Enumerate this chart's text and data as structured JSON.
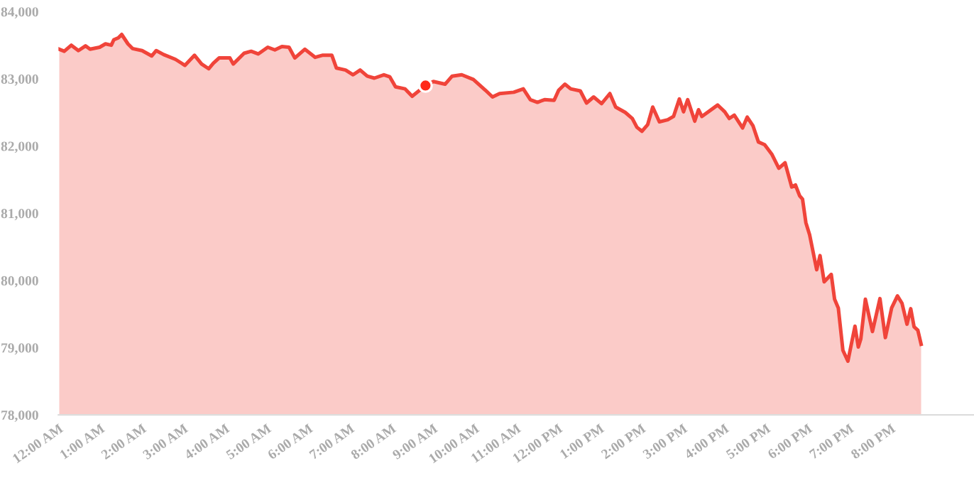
{
  "chart_data": {
    "type": "area",
    "series": [
      {
        "color": "#f0443a",
        "x": [
          0.02,
          0.14,
          0.31,
          0.48,
          0.65,
          0.76,
          0.99,
          1.13,
          1.27,
          1.33,
          1.44,
          1.52,
          1.67,
          1.78,
          2.01,
          2.24,
          2.35,
          2.53,
          2.81,
          3.04,
          3.27,
          3.44,
          3.61,
          3.72,
          3.86,
          4.12,
          4.2,
          4.46,
          4.63,
          4.8,
          5.03,
          5.2,
          5.37,
          5.54,
          5.68,
          5.92,
          6.17,
          6.34,
          6.57,
          6.68,
          6.9,
          7.08,
          7.25,
          7.42,
          7.59,
          7.82,
          7.96,
          8.1,
          8.33,
          8.5,
          8.82,
          9.01,
          9.29,
          9.46,
          9.69,
          9.97,
          10.26,
          10.43,
          10.6,
          10.94,
          11.17,
          11.34,
          11.51,
          11.68,
          11.91,
          12.02,
          12.17,
          12.31,
          12.54,
          12.69,
          12.86,
          13.05,
          13.25,
          13.39,
          13.62,
          13.79,
          13.9,
          14.02,
          14.16,
          14.28,
          14.44,
          14.64,
          14.78,
          14.92,
          15.02,
          15.12,
          15.29,
          15.38,
          15.46,
          15.84,
          16.01,
          16.12,
          16.24,
          16.44,
          16.55,
          16.69,
          16.82,
          16.97,
          17.14,
          17.31,
          17.46,
          17.62,
          17.71,
          17.81,
          17.88,
          17.96,
          18.05,
          18.22,
          18.3,
          18.4,
          18.57,
          18.65,
          18.74,
          18.85,
          18.97,
          19.14,
          19.22,
          19.28,
          19.39,
          19.56,
          19.74,
          19.87,
          20.02,
          20.16,
          20.27,
          20.39,
          20.48,
          20.56,
          20.65,
          20.73
        ],
        "values": [
          83440,
          83410,
          83500,
          83420,
          83490,
          83440,
          83470,
          83520,
          83500,
          83580,
          83610,
          83660,
          83520,
          83450,
          83420,
          83340,
          83420,
          83360,
          83290,
          83200,
          83350,
          83220,
          83150,
          83230,
          83310,
          83310,
          83220,
          83380,
          83410,
          83370,
          83470,
          83430,
          83480,
          83470,
          83310,
          83440,
          83320,
          83350,
          83350,
          83160,
          83130,
          83060,
          83130,
          83040,
          83010,
          83060,
          83030,
          82880,
          82850,
          82740,
          82900,
          82960,
          82920,
          83040,
          83060,
          82990,
          82830,
          82730,
          82780,
          82800,
          82850,
          82690,
          82650,
          82690,
          82680,
          82830,
          82920,
          82850,
          82820,
          82640,
          82730,
          82630,
          82780,
          82580,
          82500,
          82410,
          82280,
          82220,
          82320,
          82580,
          82360,
          82390,
          82440,
          82700,
          82510,
          82690,
          82370,
          82540,
          82440,
          82610,
          82510,
          82410,
          82460,
          82270,
          82430,
          82300,
          82060,
          82020,
          81880,
          81670,
          81750,
          81390,
          81420,
          81260,
          81210,
          80860,
          80680,
          80160,
          80370,
          79980,
          80090,
          79720,
          79590,
          78960,
          78800,
          79320,
          79010,
          79130,
          79720,
          79240,
          79730,
          79150,
          79590,
          79770,
          79660,
          79350,
          79580,
          79310,
          79260,
          79050
        ]
      },
      {
        "type": "scatter",
        "color": "#ff2a1a",
        "x": [
          8.82
        ],
        "values": [
          82900
        ]
      }
    ],
    "xlim": [
      0,
      22
    ],
    "xticks": [
      {
        "value": 0,
        "label": "12:00 AM"
      },
      {
        "value": 1,
        "label": "1:00 AM"
      },
      {
        "value": 2,
        "label": "2:00 AM"
      },
      {
        "value": 3,
        "label": "3:00 AM"
      },
      {
        "value": 4,
        "label": "4:00 AM"
      },
      {
        "value": 5,
        "label": "5:00 AM"
      },
      {
        "value": 6,
        "label": "6:00 AM"
      },
      {
        "value": 7,
        "label": "7:00 AM"
      },
      {
        "value": 8,
        "label": "8:00 AM"
      },
      {
        "value": 9,
        "label": "9:00 AM"
      },
      {
        "value": 10,
        "label": "10:00 AM"
      },
      {
        "value": 11,
        "label": "11:00 AM"
      },
      {
        "value": 12,
        "label": "12:00 PM"
      },
      {
        "value": 13,
        "label": "1:00 PM"
      },
      {
        "value": 14,
        "label": "2:00 PM"
      },
      {
        "value": 15,
        "label": "3:00 PM"
      },
      {
        "value": 16,
        "label": "4:00 PM"
      },
      {
        "value": 17,
        "label": "5:00 PM"
      },
      {
        "value": 18,
        "label": "6:00 PM"
      },
      {
        "value": 19,
        "label": "7:00 PM"
      },
      {
        "value": 20,
        "label": "8:00 PM"
      }
    ],
    "ylim": [
      78000,
      84000
    ],
    "yticks": [
      {
        "value": 78000,
        "label": "78,000"
      },
      {
        "value": 79000,
        "label": "79,000"
      },
      {
        "value": 80000,
        "label": "80,000"
      },
      {
        "value": 81000,
        "label": "81,000"
      },
      {
        "value": 82000,
        "label": "82,000"
      },
      {
        "value": 83000,
        "label": "83,000"
      },
      {
        "value": 84000,
        "label": "84,000"
      }
    ]
  }
}
